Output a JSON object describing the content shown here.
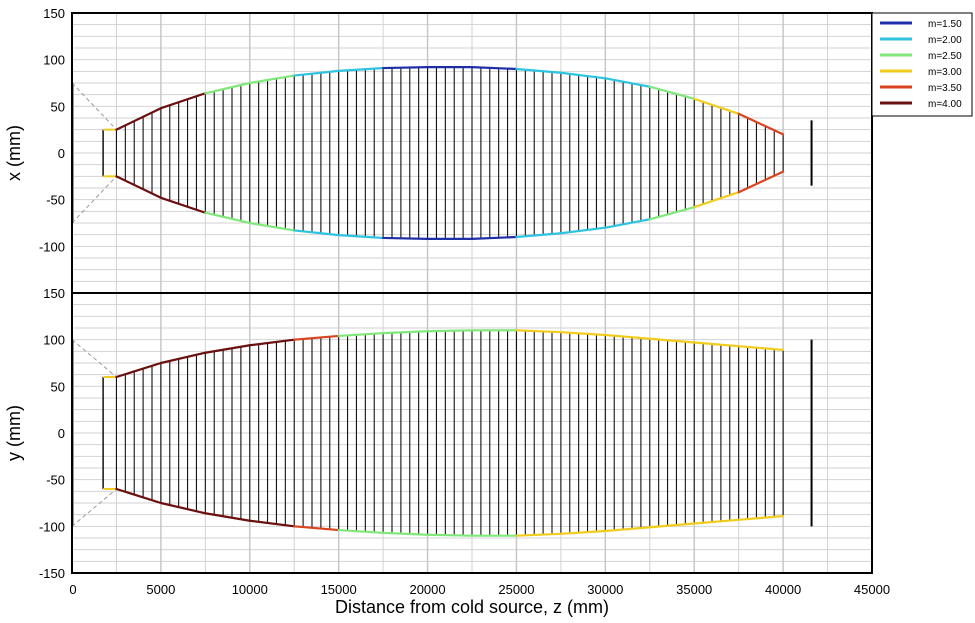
{
  "legend": {
    "items": [
      {
        "label": "m=1.50",
        "color": "#1f2fa8"
      },
      {
        "label": "m=2.00",
        "color": "#2ec4e0"
      },
      {
        "label": "m=2.50",
        "color": "#80e87a"
      },
      {
        "label": "m=3.00",
        "color": "#f2cc1c"
      },
      {
        "label": "m=3.50",
        "color": "#d9431e"
      },
      {
        "label": "m=4.00",
        "color": "#6b0f0f"
      }
    ]
  },
  "chart_data": [
    {
      "type": "line",
      "ylabel": "x (mm)",
      "xlabel": "",
      "xlim": [
        0,
        45000
      ],
      "ylim": [
        -150,
        150
      ],
      "x_ticks": [
        0,
        5000,
        10000,
        15000,
        20000,
        25000,
        30000,
        35000,
        40000,
        45000
      ],
      "y_ticks": [
        -150,
        -100,
        -50,
        0,
        50,
        100,
        150
      ],
      "grid": true,
      "guide_start_z": 2500,
      "guide_end_z": 40000,
      "envelope": {
        "z": [
          2500,
          5000,
          7500,
          10000,
          12500,
          15000,
          17500,
          20000,
          22500,
          25000,
          27500,
          30000,
          32500,
          35000,
          37500,
          40000
        ],
        "half_width": [
          25,
          48,
          64,
          75,
          83,
          88,
          91,
          92,
          92,
          90,
          86,
          80,
          71,
          58,
          42,
          20
        ],
        "m": [
          4.0,
          4.0,
          2.5,
          2.5,
          2.0,
          2.0,
          1.5,
          1.5,
          1.5,
          2.0,
          2.0,
          2.0,
          2.5,
          3.0,
          3.5,
          4.0
        ]
      },
      "source": {
        "z": 0,
        "half_width": 75
      },
      "sample_half_width": 35,
      "sample_z": 41600
    },
    {
      "type": "line",
      "ylabel": "y (mm)",
      "xlabel": "Distance from cold source, z (mm)",
      "xlim": [
        0,
        45000
      ],
      "ylim": [
        -150,
        150
      ],
      "x_ticks": [
        0,
        5000,
        10000,
        15000,
        20000,
        25000,
        30000,
        35000,
        40000,
        45000
      ],
      "y_ticks": [
        -150,
        -100,
        -50,
        0,
        50,
        100,
        150
      ],
      "grid": true,
      "guide_start_z": 2500,
      "guide_end_z": 40000,
      "envelope": {
        "z": [
          2500,
          5000,
          7500,
          10000,
          12500,
          15000,
          17500,
          20000,
          22500,
          25000,
          27500,
          30000,
          32500,
          35000,
          37500,
          40000
        ],
        "half_width": [
          60,
          75,
          86,
          94,
          100,
          104,
          107,
          109,
          110,
          110,
          108,
          105,
          101,
          97,
          93,
          89
        ],
        "m": [
          4.0,
          4.0,
          4.0,
          4.0,
          3.5,
          2.5,
          2.5,
          2.5,
          2.5,
          3.0,
          3.0,
          3.0,
          3.0,
          3.0,
          3.0,
          3.0
        ]
      },
      "source": {
        "z": 0,
        "half_width": 100
      },
      "sample_half_width": 100,
      "sample_z": 41600
    }
  ]
}
